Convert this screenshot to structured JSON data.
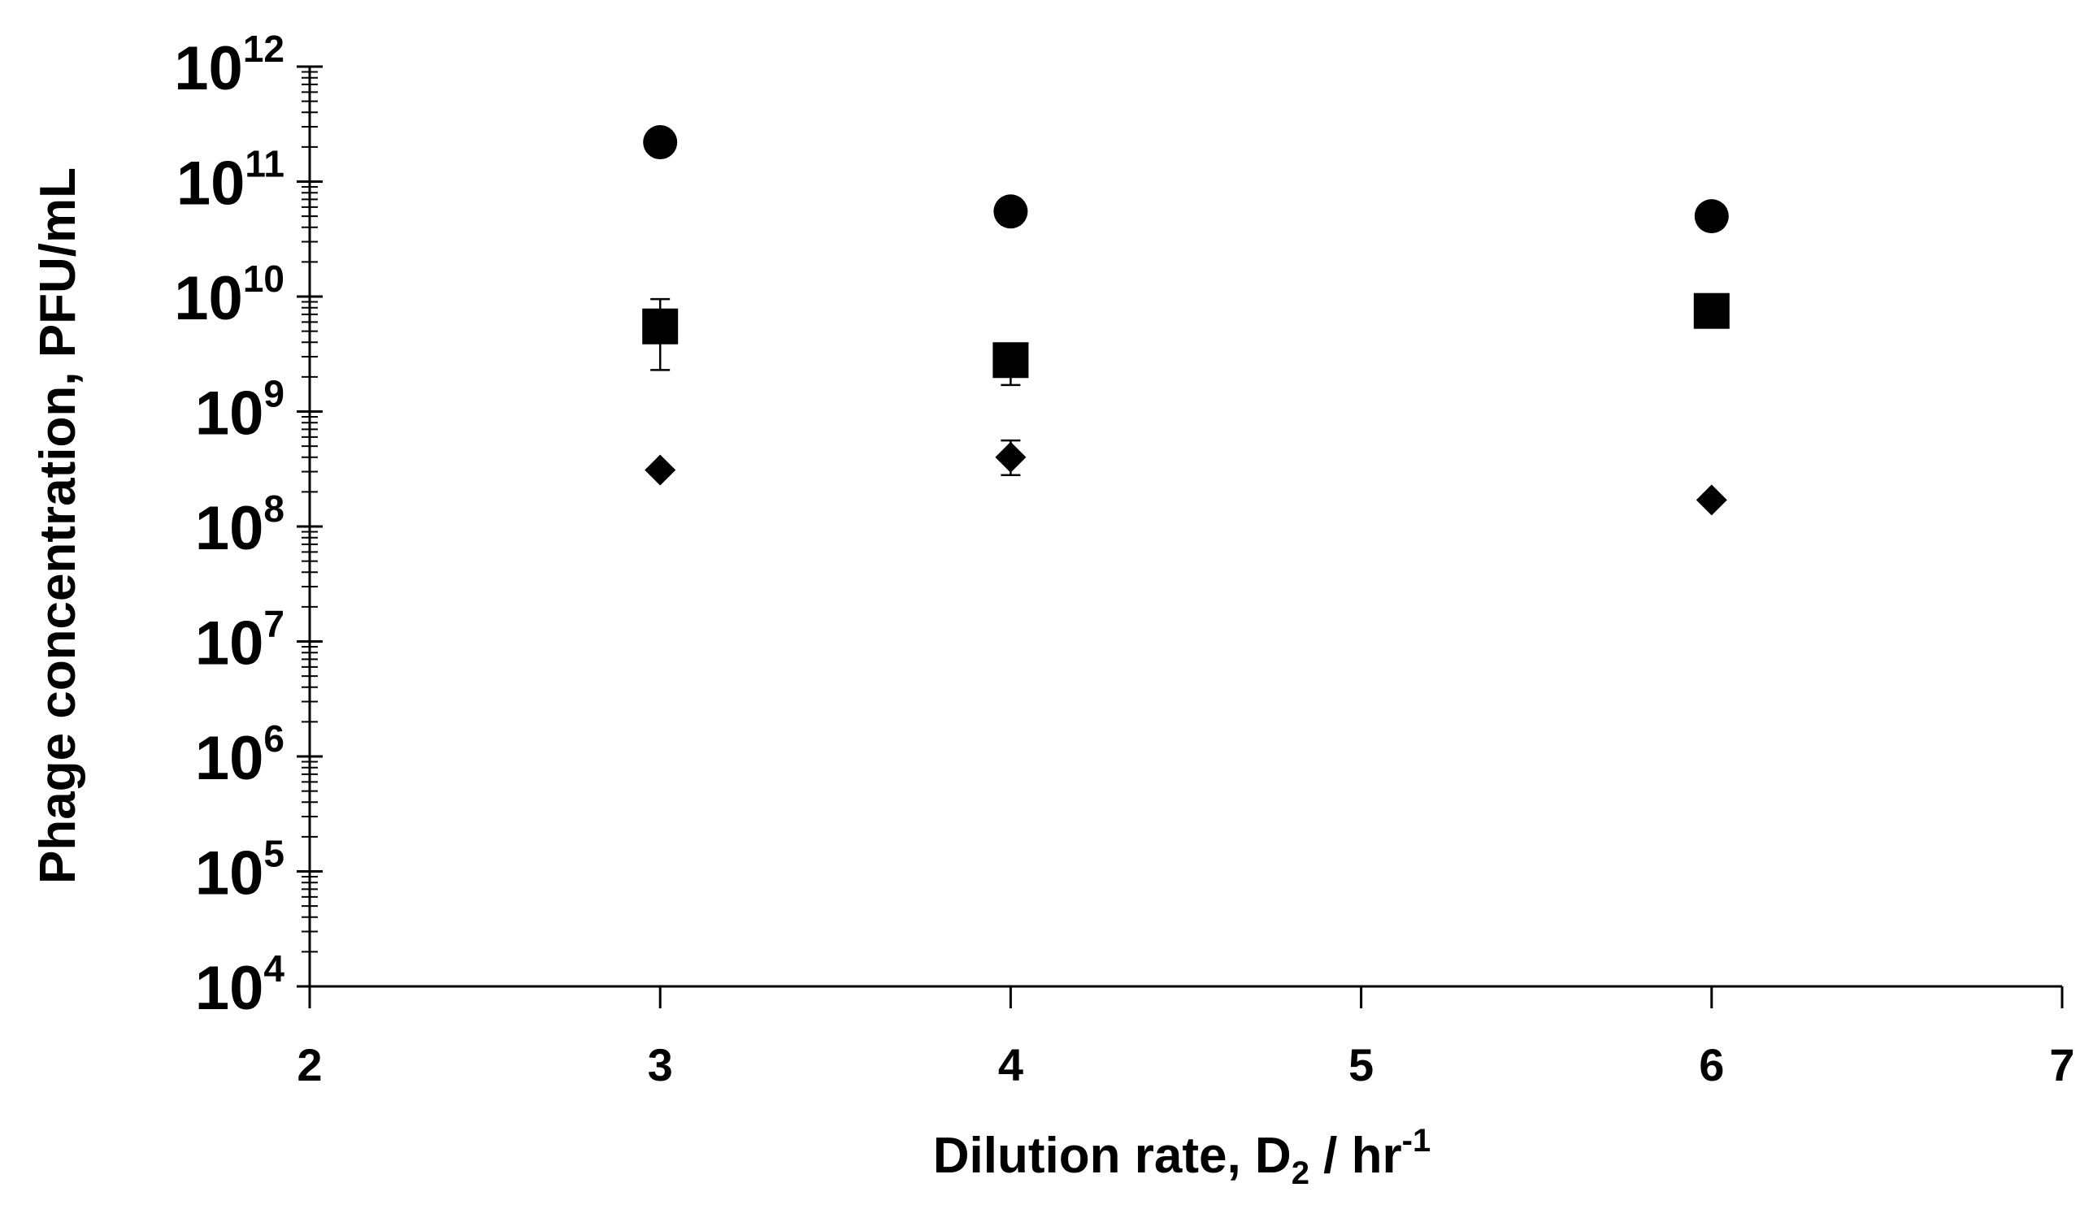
{
  "chart_data": {
    "type": "scatter",
    "title": "",
    "xlabel": {
      "main": "Dilution rate, D",
      "subscript": "2",
      "unit": " / hr",
      "superscript": "-1"
    },
    "ylabel": "Phage concentration,  PFU/mL",
    "xlim": [
      2,
      7
    ],
    "ylim": [
      10000,
      1000000000000
    ],
    "yscale": "log",
    "x_ticks": [
      "2",
      "3",
      "4",
      "5",
      "6",
      "7"
    ],
    "y_ticks": [
      {
        "base": "10",
        "exp": "4"
      },
      {
        "base": "10",
        "exp": "5"
      },
      {
        "base": "10",
        "exp": "6"
      },
      {
        "base": "10",
        "exp": "7"
      },
      {
        "base": "10",
        "exp": "8"
      },
      {
        "base": "10",
        "exp": "9"
      },
      {
        "base": "10",
        "exp": "10"
      },
      {
        "base": "10",
        "exp": "11"
      },
      {
        "base": "10",
        "exp": "12"
      }
    ],
    "grid": false,
    "legend": "none",
    "series": [
      {
        "marker": "circle",
        "color": "#000000",
        "points": [
          {
            "x": 3,
            "y": 220000000000
          },
          {
            "x": 4,
            "y": 55000000000,
            "err_low": 42000000000
          },
          {
            "x": 6,
            "y": 50000000000
          }
        ]
      },
      {
        "marker": "square",
        "color": "#000000",
        "points": [
          {
            "x": 3,
            "y": 5500000000,
            "err_low": 2300000000,
            "err_high": 9500000000
          },
          {
            "x": 4,
            "y": 2800000000,
            "err_low": 1700000000,
            "err_high": 3800000000
          },
          {
            "x": 6,
            "y": 7500000000
          }
        ]
      },
      {
        "marker": "diamond",
        "color": "#000000",
        "points": [
          {
            "x": 3,
            "y": 310000000
          },
          {
            "x": 4,
            "y": 400000000,
            "err_low": 280000000,
            "err_high": 560000000
          },
          {
            "x": 6,
            "y": 170000000
          }
        ]
      }
    ]
  }
}
